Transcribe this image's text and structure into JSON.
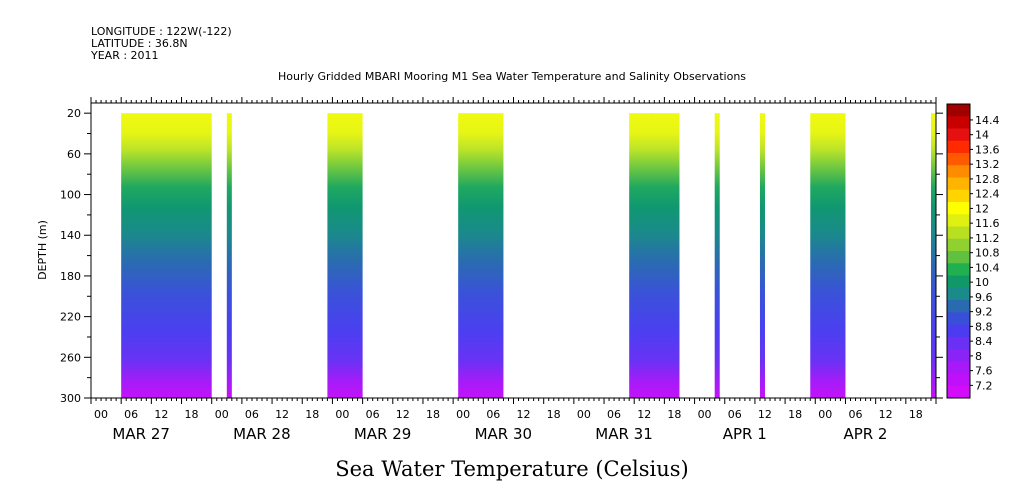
{
  "header": {
    "longitude": "LONGITUDE : 122W(-122)",
    "latitude": "LATITUDE : 36.8N",
    "year": "YEAR : 2011"
  },
  "chart_data": {
    "type": "heatmap",
    "title": "Hourly Gridded MBARI Mooring M1 Sea Water Temperature and Salinity Observations",
    "xlabel": "Sea Water Temperature (Celsius)",
    "ylabel": "DEPTH (m)",
    "x_start": "2011-03-27 00:00",
    "x_end": "2011-04-03 00:00",
    "x_tick_labels": [
      "00",
      "06",
      "12",
      "18",
      "00",
      "06",
      "12",
      "18",
      "00",
      "06",
      "12",
      "18",
      "00",
      "06",
      "12",
      "18",
      "00",
      "06",
      "12",
      "18",
      "00",
      "06",
      "12",
      "18",
      "00",
      "06",
      "12",
      "18"
    ],
    "day_labels": [
      "MAR 27",
      "MAR 28",
      "MAR 29",
      "MAR 30",
      "MAR 31",
      "APR  1",
      "APR  2"
    ],
    "ylim": [
      300,
      10
    ],
    "y_tick_labels": [
      "20",
      "60",
      "100",
      "140",
      "180",
      "220",
      "260",
      "300"
    ],
    "data_depth_range": [
      20,
      300
    ],
    "data_segments": [
      {
        "start": "2011-03-27 06:00",
        "end": "2011-03-28 00:00",
        "surface_temp": 11.9
      },
      {
        "start": "2011-03-28 03:00",
        "end": "2011-03-28 04:00",
        "surface_temp": 11.6
      },
      {
        "start": "2011-03-28 23:00",
        "end": "2011-03-29 06:00",
        "surface_temp": 11.7
      },
      {
        "start": "2011-03-30 01:00",
        "end": "2011-03-30 10:00",
        "surface_temp": 11.7
      },
      {
        "start": "2011-03-31 11:00",
        "end": "2011-03-31 21:00",
        "surface_temp": 11.9
      },
      {
        "start": "2011-03-31 15:00",
        "end": "2011-03-31 16:00",
        "surface_temp": 11.5
      },
      {
        "start": "2011-04-01 04:00",
        "end": "2011-04-01 05:00",
        "surface_temp": 11.0
      },
      {
        "start": "2011-04-01 13:00",
        "end": "2011-04-01 14:00",
        "surface_temp": 11.2
      },
      {
        "start": "2011-04-01 23:00",
        "end": "2011-04-02 06:00",
        "surface_temp": 11.8
      },
      {
        "start": "2011-04-02 23:00",
        "end": "2011-04-03 00:00",
        "surface_temp": 11.5
      }
    ],
    "colorbar": {
      "labels": [
        "14.4",
        "14",
        "13.6",
        "13.2",
        "12.8",
        "12.4",
        "12",
        "11.6",
        "11.2",
        "10.8",
        "10.4",
        "10",
        "9.6",
        "9.2",
        "8.8",
        "8.4",
        "8",
        "7.6",
        "7.2"
      ],
      "colors": [
        "#a00000",
        "#c80000",
        "#e61010",
        "#ff2a00",
        "#ff5a00",
        "#ff8c00",
        "#ffb400",
        "#ffd400",
        "#ffff00",
        "#e0f010",
        "#b8e020",
        "#90d030",
        "#60c040",
        "#20b050",
        "#109868",
        "#1a8a8a",
        "#2a6ab0",
        "#3850d8",
        "#4b3cf0",
        "#6a30f4",
        "#8a24f6",
        "#a818f8",
        "#c010fa",
        "#d30cfc"
      ]
    }
  }
}
